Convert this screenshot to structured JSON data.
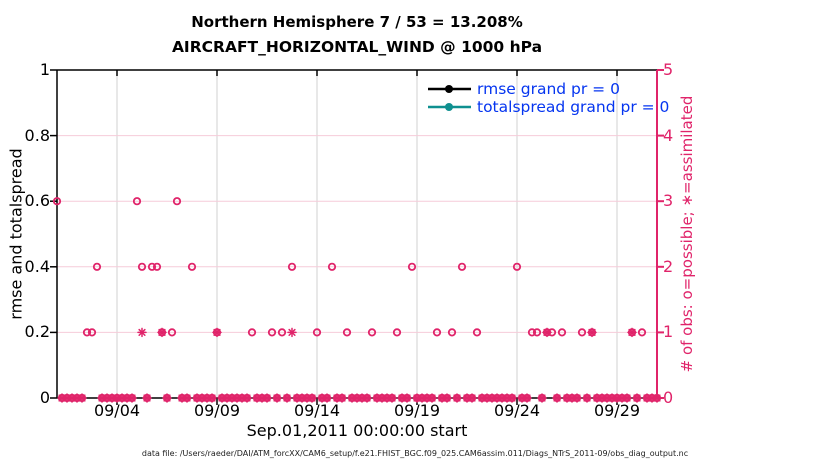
{
  "figure": {
    "title_line1": "Northern Hemisphere 7 / 53 = 13.208%",
    "title_line2": "AIRCRAFT_HORIZONTAL_WIND @ 1000 hPa",
    "footer": "data file: /Users/raeder/DAI/ATM_forcXX/CAM6_setup/f.e21.FHIST_BGC.f09_025.CAM6assim.011/Diags_NTrS_2011-09/obs_diag_output.nc"
  },
  "colors": {
    "obs_pink": "#e0246a",
    "grid_horizontal_pink": "#f6ccd9",
    "grid_vertical_gray": "#d2d2d2",
    "axis_black": "#000000",
    "right_axis_pink": "#e0246a",
    "legend_text_blue": "#0535f0",
    "rmse_black": "#000000",
    "totalspread_teal": "#0f9090"
  },
  "chart_data": {
    "type": "scatter",
    "title": "Northern Hemisphere 7 / 53 = 13.208%",
    "subtitle": "AIRCRAFT_HORIZONTAL_WIND @ 1000 hPa",
    "xlabel": "Sep.01,2011 00:00:00 start",
    "x_range_days": [
      0,
      30
    ],
    "x_ticks": [
      {
        "day": 3,
        "label": "09/04"
      },
      {
        "day": 8,
        "label": "09/09"
      },
      {
        "day": 13,
        "label": "09/14"
      },
      {
        "day": 18,
        "label": "09/19"
      },
      {
        "day": 23,
        "label": "09/24"
      },
      {
        "day": 28,
        "label": "09/29"
      }
    ],
    "left_axis": {
      "label": "rmse and totalspread",
      "ticks": [
        "0",
        "0.2",
        "0.4",
        "0.6",
        "0.8",
        "1"
      ],
      "tick_values": [
        0,
        0.2,
        0.4,
        0.6,
        0.8,
        1
      ],
      "range": [
        0,
        1
      ]
    },
    "right_axis": {
      "label": "# of obs: o=possible; ∗=assimilated",
      "ticks": [
        "0",
        "1",
        "2",
        "3",
        "4",
        "5"
      ],
      "tick_values": [
        0,
        1,
        2,
        3,
        4,
        5
      ],
      "range": [
        0,
        5
      ]
    },
    "grid": {
      "horizontal_at_counts": [
        1,
        2,
        3,
        4
      ],
      "vertical_at_ticks": true
    },
    "legend": [
      {
        "label": "rmse grand pr = 0",
        "series": "rmse",
        "color": "#000000"
      },
      {
        "label": "totalspread grand pr = 0",
        "series": "totalspread",
        "color": "#0f9090"
      }
    ],
    "series": [
      {
        "name": "possible",
        "marker": "o",
        "total": 53,
        "points": [
          [
            0,
            3
          ],
          [
            4,
            3
          ],
          [
            6,
            3
          ],
          [
            2,
            2
          ],
          [
            4.25,
            2
          ],
          [
            4.75,
            2
          ],
          [
            5,
            2
          ],
          [
            6.75,
            2
          ],
          [
            11.75,
            2
          ],
          [
            13.75,
            2
          ],
          [
            17.75,
            2
          ],
          [
            20.25,
            2
          ],
          [
            23,
            2
          ],
          [
            1.5,
            1
          ],
          [
            1.75,
            1
          ],
          [
            5.25,
            1
          ],
          [
            5.75,
            1
          ],
          [
            8,
            1
          ],
          [
            9.75,
            1
          ],
          [
            10.75,
            1
          ],
          [
            11.25,
            1
          ],
          [
            13,
            1
          ],
          [
            14.5,
            1
          ],
          [
            15.75,
            1
          ],
          [
            17,
            1
          ],
          [
            19,
            1
          ],
          [
            19.75,
            1
          ],
          [
            21,
            1
          ],
          [
            23.75,
            1
          ],
          [
            24,
            1
          ],
          [
            24.5,
            1
          ],
          [
            24.75,
            1
          ],
          [
            25.25,
            1
          ],
          [
            26.25,
            1
          ],
          [
            26.75,
            1
          ],
          [
            28.75,
            1
          ],
          [
            29.25,
            1
          ]
        ]
      },
      {
        "name": "assimilated",
        "marker": "*",
        "total": 7,
        "points": [
          [
            4.25,
            1
          ],
          [
            5.25,
            1
          ],
          [
            8,
            1
          ],
          [
            11.75,
            1
          ],
          [
            24.5,
            1
          ],
          [
            26.75,
            1
          ],
          [
            28.75,
            1
          ]
        ]
      }
    ],
    "zero_fill": {
      "step_days": 0.25,
      "note": "every other 6-hourly time from 09/01 to 10/01 has 0 possible and 0 assimilated obs, drawn as overlapping o and * markers on the y=0 axis"
    }
  }
}
